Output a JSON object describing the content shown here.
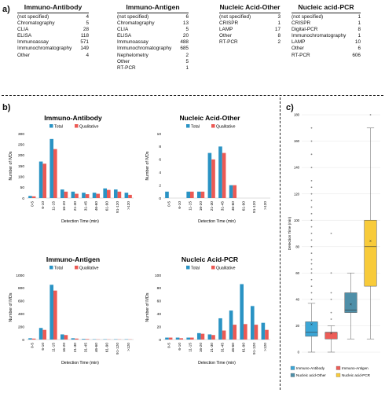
{
  "panel_labels": {
    "a": "a)",
    "b": "b)",
    "c": "c)"
  },
  "tables": [
    {
      "title": "Immuno-Antibody",
      "rows": [
        [
          "(not specified)",
          "4"
        ],
        [
          "Chromatography",
          "5"
        ],
        [
          "CLIA",
          "28"
        ],
        [
          "ELISA",
          "118"
        ],
        [
          "Immunoassay",
          "571"
        ],
        [
          "Immunochromatography",
          "149"
        ],
        [
          "Other",
          "4"
        ]
      ]
    },
    {
      "title": "Immuno-Antigen",
      "rows": [
        [
          "(not specified)",
          "6"
        ],
        [
          "Chromatography",
          "13"
        ],
        [
          "CLIA",
          "5"
        ],
        [
          "ELISA",
          "20"
        ],
        [
          "Immunoassay",
          "488"
        ],
        [
          "Immunochromatography",
          "685"
        ],
        [
          "Nephelometry",
          "2"
        ],
        [
          "Other",
          "5"
        ],
        [
          "RT-PCR",
          "1"
        ]
      ]
    },
    {
      "title": "Nucleic Acid-Other",
      "rows": [
        [
          "(not specified)",
          "3"
        ],
        [
          "CRISPR",
          "1"
        ],
        [
          "LAMP",
          "17"
        ],
        [
          "Other",
          "8"
        ],
        [
          "RT-PCR",
          "2"
        ]
      ]
    },
    {
      "title": "Nucleic acid-PCR",
      "rows": [
        [
          "(not specified)",
          "1"
        ],
        [
          "CRISPR",
          "1"
        ],
        [
          "Digital-PCR",
          "8"
        ],
        [
          "Immunochromatography",
          "1"
        ],
        [
          "LAMP",
          "10"
        ],
        [
          "Other",
          "6"
        ],
        [
          "RT-PCR",
          "606"
        ]
      ]
    }
  ],
  "colors": {
    "total": "#2a93c4",
    "qualitative": "#ec5a54"
  },
  "chart_data": [
    {
      "type": "bar",
      "title": "Immuno-Antibody",
      "xlabel": "Detection Time (min)",
      "ylabel": "Number of IVDs",
      "categories": [
        "0-5",
        "6-10",
        "11-15",
        "16-20",
        "21-30",
        "31-45",
        "46-60",
        "61-90",
        "91-120",
        ">120"
      ],
      "ylim": [
        0,
        300
      ],
      "yticks": [
        0,
        50,
        100,
        150,
        200,
        250,
        300
      ],
      "legend": "top",
      "series": [
        {
          "name": "Total",
          "values": [
            10,
            170,
            275,
            40,
            30,
            25,
            25,
            45,
            40,
            25
          ]
        },
        {
          "name": "Qualitative",
          "values": [
            8,
            160,
            228,
            30,
            20,
            18,
            20,
            38,
            30,
            15
          ]
        }
      ]
    },
    {
      "type": "bar",
      "title": "Nucleic Acid-Other",
      "xlabel": "Detection Time (min)",
      "ylabel": "Number of IVDs",
      "categories": [
        "0-5",
        "6-10",
        "11-15",
        "16-20",
        "21-30",
        "31-45",
        "46-60",
        "61-90",
        "91-120",
        ">120"
      ],
      "ylim": [
        0,
        10
      ],
      "yticks": [
        0,
        2,
        4,
        6,
        8,
        10
      ],
      "legend": "top",
      "series": [
        {
          "name": "Total",
          "values": [
            1,
            0,
            1,
            1,
            7,
            8,
            2,
            0,
            0,
            0
          ]
        },
        {
          "name": "Qualitative",
          "values": [
            0,
            0,
            1,
            1,
            6,
            7,
            2,
            0,
            0,
            0
          ]
        }
      ]
    },
    {
      "type": "bar",
      "title": "Immuno-Antigen",
      "xlabel": "Detection Time (min)",
      "ylabel": "Number of IVDs",
      "categories": [
        "0-5",
        "6-10",
        "11-15",
        "16-20",
        "21-30",
        "31-45",
        "46-60",
        "61-90",
        "91-120",
        ">120"
      ],
      "ylim": [
        0,
        1000
      ],
      "yticks": [
        0,
        200,
        400,
        600,
        800,
        1000
      ],
      "legend": "top",
      "series": [
        {
          "name": "Total",
          "values": [
            20,
            180,
            850,
            80,
            20,
            10,
            5,
            5,
            5,
            5
          ]
        },
        {
          "name": "Qualitative",
          "values": [
            15,
            150,
            760,
            70,
            15,
            8,
            3,
            3,
            3,
            3
          ]
        }
      ]
    },
    {
      "type": "bar",
      "title": "Nucleic Acid-PCR",
      "xlabel": "Detection Time (min)",
      "ylabel": "Number of IVDs",
      "categories": [
        "0-5",
        "6-10",
        "11-15",
        "16-20",
        "21-30",
        "31-45",
        "46-60",
        "61-90",
        "91-120",
        ">120"
      ],
      "ylim": [
        0,
        100
      ],
      "yticks": [
        0,
        20,
        40,
        60,
        80,
        100
      ],
      "legend": "top",
      "series": [
        {
          "name": "Total",
          "values": [
            3,
            3,
            3,
            10,
            8,
            33,
            45,
            86,
            52,
            26
          ]
        },
        {
          "name": "Qualitative",
          "values": [
            3,
            2,
            3,
            9,
            7,
            14,
            23,
            24,
            23,
            15
          ]
        }
      ]
    },
    {
      "type": "box",
      "xlabel": "",
      "ylabel": "Detection Time (min)",
      "ylim": [
        0,
        180
      ],
      "yticks": [
        0,
        20,
        40,
        60,
        80,
        100,
        120,
        140,
        160,
        180
      ],
      "legend": "bottom",
      "series": [
        {
          "name": "Immuno-Antibody",
          "color": "#3ca6d6",
          "min": 0,
          "q1": 12,
          "median": 15,
          "q3": 23,
          "max": 37,
          "mean": 21,
          "outliers": [
            40,
            45,
            50,
            55,
            60,
            63,
            67,
            70,
            75,
            80,
            85,
            90,
            95,
            100,
            105,
            110,
            115,
            120,
            125,
            130,
            140,
            150,
            160,
            170
          ]
        },
        {
          "name": "Immuno-Antigen",
          "color": "#ed5d57",
          "min": 0,
          "q1": 10,
          "median": 15,
          "q3": 15,
          "max": 20,
          "mean": 14,
          "outliers": [
            25,
            30,
            40,
            45,
            60,
            90
          ]
        },
        {
          "name": "Nucleic acid-Other",
          "color": "#4f8fa8",
          "min": 10,
          "q1": 30,
          "median": 32,
          "q3": 45,
          "max": 60,
          "mean": 36,
          "outliers": []
        },
        {
          "name": "Nucleic acid-PCR",
          "color": "#f8cb3a",
          "min": 10,
          "q1": 50,
          "median": 80,
          "q3": 100,
          "max": 170,
          "mean": 84,
          "outliers": [
            180
          ]
        }
      ]
    }
  ]
}
